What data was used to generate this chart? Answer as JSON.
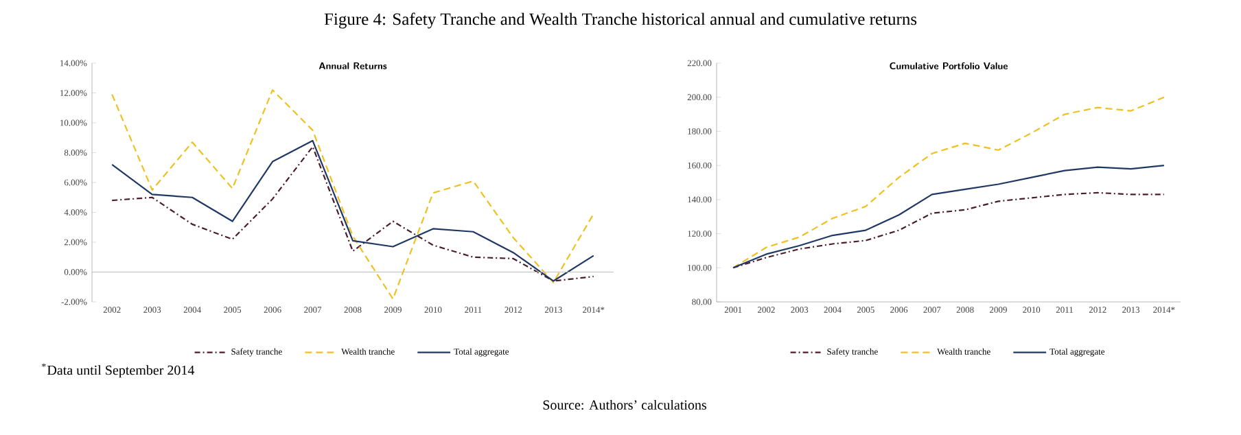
{
  "chart_data": [
    {
      "type": "line",
      "title": "Annual Returns",
      "annotations": [
        "Figure 4: Safety Tranche and Wealth Tranche historical annual and cumulative returns",
        "$^{*}$Data until September 2014",
        "Source: Authors’ calculations"
      ],
      "categories": [
        "2002",
        "2003",
        "2004",
        "2005",
        "2006",
        "2007",
        "2008",
        "2009",
        "2010",
        "2011",
        "2012",
        "2013",
        "2014*"
      ],
      "series": [
        {
          "name": "Safety tranche",
          "color": "#4a1c2c",
          "line_style": "dashdot",
          "values": [
            4.8,
            5.0,
            3.2,
            2.2,
            4.9,
            8.4,
            1.4,
            3.4,
            1.8,
            1.0,
            0.9,
            -0.6,
            -0.3
          ]
        },
        {
          "name": "Wealth tranche",
          "color": "#f0c020",
          "line_style": "dashed",
          "values": [
            11.9,
            5.5,
            8.7,
            5.6,
            12.2,
            9.5,
            2.4,
            -1.8,
            5.3,
            6.1,
            2.3,
            -0.7,
            3.9
          ]
        },
        {
          "name": "Total aggregate",
          "color": "#1f3864",
          "line_style": "solid",
          "values": [
            7.2,
            5.2,
            5.0,
            3.4,
            7.4,
            8.8,
            2.1,
            1.7,
            2.9,
            2.7,
            1.3,
            -0.6,
            1.1
          ]
        }
      ],
      "ylim": [
        -2,
        14
      ],
      "yticks": [
        {
          "value": -2,
          "label": "-2.00%"
        },
        {
          "value": 0,
          "label": "0.00%"
        },
        {
          "value": 2,
          "label": "2.00%"
        },
        {
          "value": 4,
          "label": "4.00%"
        },
        {
          "value": 6,
          "label": "6.00%"
        },
        {
          "value": 8,
          "label": "8.00%"
        },
        {
          "value": 10,
          "label": "10.00%"
        },
        {
          "value": 12,
          "label": "12.00%"
        },
        {
          "value": 14,
          "label": "14.00%"
        }
      ],
      "ref_lines": [
        {
          "axis": "y",
          "value": 0,
          "color": "#bfbfbf"
        }
      ],
      "legend": "bottom"
    },
    {
      "type": "line",
      "title": "Cumulative Portfolio Value",
      "categories": [
        "2001",
        "2002",
        "2003",
        "2004",
        "2005",
        "2006",
        "2007",
        "2008",
        "2009",
        "2010",
        "2011",
        "2012",
        "2013",
        "2014*"
      ],
      "series": [
        {
          "name": "Safety tranche",
          "color": "#4a1c2c",
          "line_style": "dashdot",
          "values": [
            100,
            106,
            111,
            114,
            116,
            122,
            132,
            134,
            139,
            141,
            143,
            144,
            143,
            143
          ]
        },
        {
          "name": "Wealth tranche",
          "color": "#f0c020",
          "line_style": "dashed",
          "values": [
            100,
            112,
            118,
            129,
            136,
            153,
            167,
            173,
            169,
            179,
            190,
            194,
            192,
            200
          ]
        },
        {
          "name": "Total aggregate",
          "color": "#1f3864",
          "line_style": "solid",
          "values": [
            100,
            108,
            113,
            119,
            122,
            131,
            143,
            146,
            149,
            153,
            157,
            159,
            158,
            160
          ]
        }
      ],
      "ylim": [
        80,
        220
      ],
      "yticks": [
        {
          "value": 80,
          "label": "80.00"
        },
        {
          "value": 100,
          "label": "100.00"
        },
        {
          "value": 120,
          "label": "120.00"
        },
        {
          "value": 140,
          "label": "140.00"
        },
        {
          "value": 160,
          "label": "160.00"
        },
        {
          "value": 180,
          "label": "180.00"
        },
        {
          "value": 200,
          "label": "200.00"
        },
        {
          "value": 220,
          "label": "220.00"
        }
      ],
      "legend": "bottom"
    }
  ]
}
